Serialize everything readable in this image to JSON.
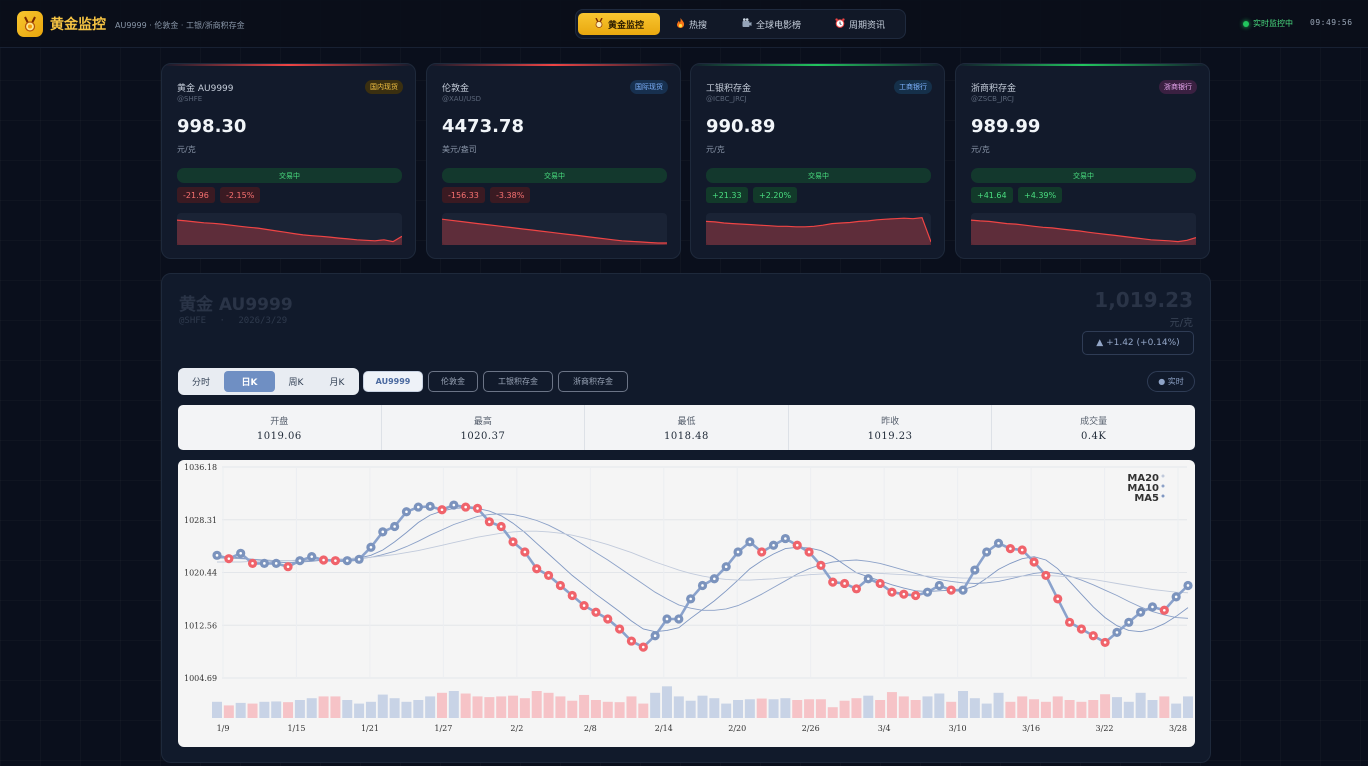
{
  "header": {
    "logo_icon": "medal-icon",
    "title": "黄金监控",
    "subtitle": "AU9999 · 伦敦金 · 工银/浙商积存金",
    "nav": [
      {
        "label": "黄金监控",
        "icon": "medal-icon",
        "active": true
      },
      {
        "label": "热搜",
        "icon": "fire-icon",
        "active": false
      },
      {
        "label": "全球电影榜",
        "icon": "film-icon",
        "active": false
      },
      {
        "label": "周期资讯",
        "icon": "alarm-clock-icon",
        "active": false
      }
    ],
    "status": "实时监控中",
    "clock": "09:49:56"
  },
  "cards": [
    {
      "name": "黄金 AU9999",
      "code": "@SHFE",
      "badge": "国内现货",
      "price": "998.30",
      "unit": "元/克",
      "status": "交易中",
      "change": "-21.96",
      "change_pct": "-2.15%",
      "direction": "down",
      "sparkline": [
        0.85,
        0.82,
        0.78,
        0.75,
        0.73,
        0.7,
        0.66,
        0.62,
        0.58,
        0.55,
        0.5,
        0.45,
        0.4,
        0.35,
        0.3,
        0.27,
        0.25,
        0.22,
        0.18,
        0.15,
        0.12,
        0.1,
        0.08,
        0.12,
        0.05,
        0.25
      ]
    },
    {
      "name": "伦敦金",
      "code": "@XAU/USD",
      "badge": "国际现货",
      "price": "4473.78",
      "unit": "美元/盎司",
      "status": "交易中",
      "change": "-156.33",
      "change_pct": "-3.38%",
      "direction": "down",
      "sparkline": [
        0.88,
        0.84,
        0.8,
        0.76,
        0.72,
        0.68,
        0.64,
        0.6,
        0.56,
        0.52,
        0.48,
        0.44,
        0.4,
        0.36,
        0.32,
        0.28,
        0.24,
        0.2,
        0.16,
        0.12,
        0.08,
        0.06,
        0.04,
        0.02,
        0.0,
        0.0
      ]
    },
    {
      "name": "工银积存金",
      "code": "@ICBC_JRCJ",
      "badge": "工商银行",
      "price": "990.89",
      "unit": "元/克",
      "status": "交易中",
      "change": "+21.33",
      "change_pct": "+2.20%",
      "direction": "up",
      "sparkline": [
        0.8,
        0.78,
        0.74,
        0.72,
        0.7,
        0.68,
        0.66,
        0.64,
        0.62,
        0.62,
        0.6,
        0.6,
        0.62,
        0.66,
        0.72,
        0.74,
        0.76,
        0.8,
        0.82,
        0.86,
        0.88,
        0.9,
        0.92,
        0.9,
        0.94,
        0.04
      ]
    },
    {
      "name": "浙商积存金",
      "code": "@ZSCB_JRCJ",
      "badge": "浙商银行",
      "price": "989.99",
      "unit": "元/克",
      "status": "交易中",
      "change": "+41.64",
      "change_pct": "+4.39%",
      "direction": "up",
      "sparkline": [
        0.85,
        0.82,
        0.8,
        0.76,
        0.72,
        0.7,
        0.66,
        0.62,
        0.58,
        0.56,
        0.52,
        0.48,
        0.45,
        0.4,
        0.36,
        0.32,
        0.28,
        0.24,
        0.2,
        0.16,
        0.12,
        0.1,
        0.08,
        0.05,
        0.1,
        0.2
      ]
    }
  ],
  "colors": {
    "down": "#ef4444",
    "up": "#22c55e",
    "gold": "#f6c443",
    "chart_up": "#7b93bd",
    "chart_down": "#f0636b"
  },
  "main": {
    "title": "黄金 AU9999",
    "exchange": "@SHFE",
    "separator": "·",
    "date": "2026/3/29",
    "price": "1,019.23",
    "unit": "元/克",
    "change": "▲ +1.42 (+0.14%)",
    "periods": [
      "分时",
      "日K",
      "周K",
      "月K"
    ],
    "active_period": "日K",
    "chips": [
      "AU9999",
      "伦敦金",
      "工银积存金",
      "浙商积存金"
    ],
    "active_chip": "AU9999",
    "live": "● 实时",
    "stats": [
      {
        "label": "开盘",
        "value": "1019.06"
      },
      {
        "label": "最高",
        "value": "1020.37"
      },
      {
        "label": "最低",
        "value": "1018.48"
      },
      {
        "label": "昨收",
        "value": "1019.23"
      },
      {
        "label": "成交量",
        "value": "0.4K"
      }
    ]
  },
  "chart_data": {
    "type": "line",
    "ylim": [
      1004.69,
      1036.18
    ],
    "yticks": [
      "1036.18",
      "1028.31",
      "1020.44",
      "1012.56",
      "1004.69"
    ],
    "xticks": [
      "1/9",
      "1/15",
      "1/21",
      "1/27",
      "2/2",
      "2/8",
      "2/14",
      "2/20",
      "2/26",
      "3/4",
      "3/10",
      "3/16",
      "3/22",
      "3/28"
    ],
    "legend": [
      "MA20",
      "MA10",
      "MA5"
    ],
    "series": [
      {
        "name": "",
        "values": [
          1023.0,
          1022.5,
          1023.3,
          1021.8,
          1021.8,
          1021.8,
          1021.3,
          1022.2,
          1022.8,
          1022.3,
          1022.2,
          1022.2,
          1022.4,
          1024.2,
          1026.5,
          1027.3,
          1029.5,
          1030.2,
          1030.3,
          1029.8,
          1030.5,
          1030.2,
          1030.0,
          1028.0,
          1027.3,
          1025.0,
          1023.5,
          1021.0,
          1020.0,
          1018.5,
          1017.0,
          1015.5,
          1014.5,
          1013.5,
          1012.0,
          1010.2,
          1009.3,
          1011.0,
          1013.5,
          1013.5,
          1016.5,
          1018.5,
          1019.5,
          1021.3,
          1023.5,
          1025.0,
          1023.5,
          1024.5,
          1025.5,
          1024.5,
          1023.5,
          1021.5,
          1019.0,
          1018.8,
          1018.0,
          1019.5,
          1018.8,
          1017.5,
          1017.2,
          1017.0,
          1017.5,
          1018.5,
          1017.8,
          1017.8,
          1020.8,
          1023.5,
          1024.8,
          1024.0,
          1023.8,
          1022.0,
          1020.0,
          1016.5,
          1013.0,
          1012.0,
          1011.0,
          1010.0,
          1011.5,
          1013.0,
          1014.5,
          1015.3,
          1014.8,
          1016.8,
          1018.5
        ]
      },
      {
        "name": "MA5",
        "values": [
          1022.8,
          1022.8,
          1022.6,
          1022.4,
          1022.2,
          1022.0,
          1021.9,
          1022.0,
          1022.1,
          1022.3,
          1022.4,
          1022.5,
          1022.6,
          1023.0,
          1023.8,
          1025.0,
          1026.4,
          1027.9,
          1029.0,
          1029.6,
          1030.0,
          1030.1,
          1030.0,
          1029.6,
          1028.9,
          1027.8,
          1026.4,
          1024.8,
          1023.2,
          1021.6,
          1020.0,
          1018.6,
          1017.2,
          1015.9,
          1014.6,
          1013.2,
          1012.0,
          1011.6,
          1011.8,
          1012.2,
          1013.6,
          1014.9,
          1016.2,
          1017.7,
          1019.3,
          1021.0,
          1022.2,
          1023.2,
          1024.0,
          1024.2,
          1024.1,
          1023.7,
          1022.8,
          1021.6,
          1020.4,
          1019.8,
          1019.2,
          1018.6,
          1018.1,
          1017.7,
          1017.6,
          1017.7,
          1017.8,
          1017.9,
          1018.4,
          1019.6,
          1020.9,
          1021.8,
          1022.5,
          1022.8,
          1022.3,
          1021.0,
          1019.1,
          1017.2,
          1015.3,
          1013.7,
          1012.5,
          1011.8,
          1011.6,
          1012.0,
          1012.8,
          1013.9,
          1015.2
        ]
      },
      {
        "name": "MA10",
        "values": [
          1022.6,
          1022.6,
          1022.5,
          1022.4,
          1022.3,
          1022.2,
          1022.2,
          1022.2,
          1022.2,
          1022.3,
          1022.3,
          1022.4,
          1022.5,
          1022.7,
          1023.1,
          1023.6,
          1024.3,
          1025.1,
          1026.0,
          1026.8,
          1027.6,
          1028.2,
          1028.8,
          1029.1,
          1029.2,
          1029.1,
          1028.7,
          1028.2,
          1027.5,
          1026.6,
          1025.6,
          1024.5,
          1023.4,
          1022.3,
          1021.1,
          1019.9,
          1018.7,
          1017.5,
          1016.5,
          1015.6,
          1015.1,
          1014.8,
          1014.8,
          1015.0,
          1015.5,
          1016.3,
          1017.2,
          1018.2,
          1019.2,
          1020.2,
          1021.0,
          1021.6,
          1022.0,
          1022.2,
          1022.3,
          1022.1,
          1021.8,
          1021.3,
          1020.8,
          1020.3,
          1019.8,
          1019.4,
          1019.1,
          1018.9,
          1018.8,
          1018.9,
          1019.1,
          1019.5,
          1019.9,
          1020.3,
          1020.5,
          1020.3,
          1019.9,
          1019.3,
          1018.6,
          1017.8,
          1017.0,
          1016.1,
          1015.3,
          1014.6,
          1014.1,
          1013.7,
          1013.6
        ]
      },
      {
        "name": "MA20",
        "values": [
          1022.0,
          1022.0,
          1022.0,
          1022.1,
          1022.1,
          1022.2,
          1022.2,
          1022.3,
          1022.3,
          1022.4,
          1022.4,
          1022.5,
          1022.6,
          1022.7,
          1022.9,
          1023.1,
          1023.4,
          1023.7,
          1024.1,
          1024.5,
          1024.9,
          1025.3,
          1025.7,
          1026.0,
          1026.3,
          1026.5,
          1026.6,
          1026.6,
          1026.5,
          1026.3,
          1026.0,
          1025.6,
          1025.1,
          1024.6,
          1024.0,
          1023.4,
          1022.7,
          1022.0,
          1021.4,
          1020.8,
          1020.3,
          1019.9,
          1019.6,
          1019.4,
          1019.3,
          1019.3,
          1019.4,
          1019.5,
          1019.7,
          1019.9,
          1020.1,
          1020.2,
          1020.3,
          1020.4,
          1020.4,
          1020.4,
          1020.3,
          1020.2,
          1020.1,
          1020.0,
          1019.9,
          1019.8,
          1019.7,
          1019.6,
          1019.6,
          1019.6,
          1019.7,
          1019.8,
          1019.9,
          1020.0,
          1020.0,
          1019.9,
          1019.8,
          1019.6,
          1019.4,
          1019.1,
          1018.8,
          1018.5,
          1018.2,
          1017.9,
          1017.7,
          1017.5,
          1017.4
        ]
      }
    ],
    "volume": [
      0.45,
      0.35,
      0.42,
      0.4,
      0.45,
      0.46,
      0.44,
      0.5,
      0.55,
      0.6,
      0.6,
      0.5,
      0.4,
      0.45,
      0.65,
      0.55,
      0.45,
      0.5,
      0.6,
      0.7,
      0.75,
      0.68,
      0.6,
      0.58,
      0.6,
      0.62,
      0.55,
      0.75,
      0.7,
      0.6,
      0.48,
      0.64,
      0.5,
      0.45,
      0.44,
      0.6,
      0.4,
      0.7,
      0.88,
      0.6,
      0.48,
      0.62,
      0.55,
      0.4,
      0.5,
      0.52,
      0.54,
      0.52,
      0.55,
      0.5,
      0.52,
      0.52,
      0.3,
      0.48,
      0.55,
      0.62,
      0.5,
      0.72,
      0.6,
      0.5,
      0.6,
      0.68,
      0.45,
      0.75,
      0.55,
      0.4,
      0.7,
      0.45,
      0.6,
      0.52,
      0.45,
      0.6,
      0.5,
      0.45,
      0.5,
      0.66,
      0.58,
      0.45,
      0.7,
      0.5,
      0.6,
      0.4,
      0.6
    ]
  }
}
